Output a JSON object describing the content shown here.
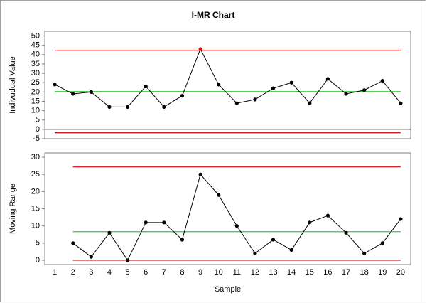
{
  "chart_data": [
    {
      "type": "line",
      "title": "I-MR Chart",
      "ylabel": "Indivudual Value",
      "x": [
        1,
        2,
        3,
        4,
        5,
        6,
        7,
        8,
        9,
        10,
        11,
        12,
        13,
        14,
        15,
        16,
        17,
        18,
        19,
        20
      ],
      "xlim": [
        0.45,
        20.55
      ],
      "series": [
        {
          "color": "#000000",
          "values": [
            24,
            19,
            20,
            12,
            12,
            23,
            12,
            18,
            43,
            24,
            14,
            16,
            22,
            25,
            14,
            27,
            19,
            21,
            26,
            14
          ],
          "marker_colors": [
            "#000000",
            "#000000",
            "#000000",
            "#000000",
            "#000000",
            "#000000",
            "#000000",
            "#000000",
            "#e01010",
            "#000000",
            "#000000",
            "#000000",
            "#000000",
            "#000000",
            "#000000",
            "#000000",
            "#000000",
            "#000000",
            "#000000",
            "#000000"
          ]
        }
      ],
      "center_line": 20.25,
      "ucl": 42.37,
      "lcl": -1.87,
      "center_color": "#33cc33",
      "limit_color": "#cc0000",
      "ylim": [
        -5,
        52.5
      ],
      "yticks": [
        -5,
        0,
        5,
        10,
        15,
        20,
        25,
        30,
        35,
        40,
        45,
        50
      ],
      "zero_line": true
    },
    {
      "type": "line",
      "ylabel": "Moving Range",
      "xlabel": "Sample",
      "x": [
        1,
        2,
        3,
        4,
        5,
        6,
        7,
        8,
        9,
        10,
        11,
        12,
        13,
        14,
        15,
        16,
        17,
        18,
        19,
        20
      ],
      "xlim": [
        0.45,
        20.55
      ],
      "xticks": [
        1,
        2,
        3,
        4,
        5,
        6,
        7,
        8,
        9,
        10,
        11,
        12,
        13,
        14,
        15,
        16,
        17,
        18,
        19,
        20
      ],
      "series": [
        {
          "color": "#000000",
          "values": [
            null,
            5,
            1,
            8,
            0,
            11,
            11,
            6,
            25,
            19,
            10,
            2,
            6,
            3,
            11,
            13,
            8,
            2,
            5,
            12
          ]
        }
      ],
      "center_line": 8.32,
      "ucl": 27.17,
      "lcl": 0,
      "center_color": "#33cc33",
      "limit_color": "#cc0000",
      "ylim": [
        -1.25,
        31.25
      ],
      "yticks": [
        0,
        5,
        10,
        15,
        20,
        25,
        30
      ],
      "zero_line": false
    }
  ]
}
